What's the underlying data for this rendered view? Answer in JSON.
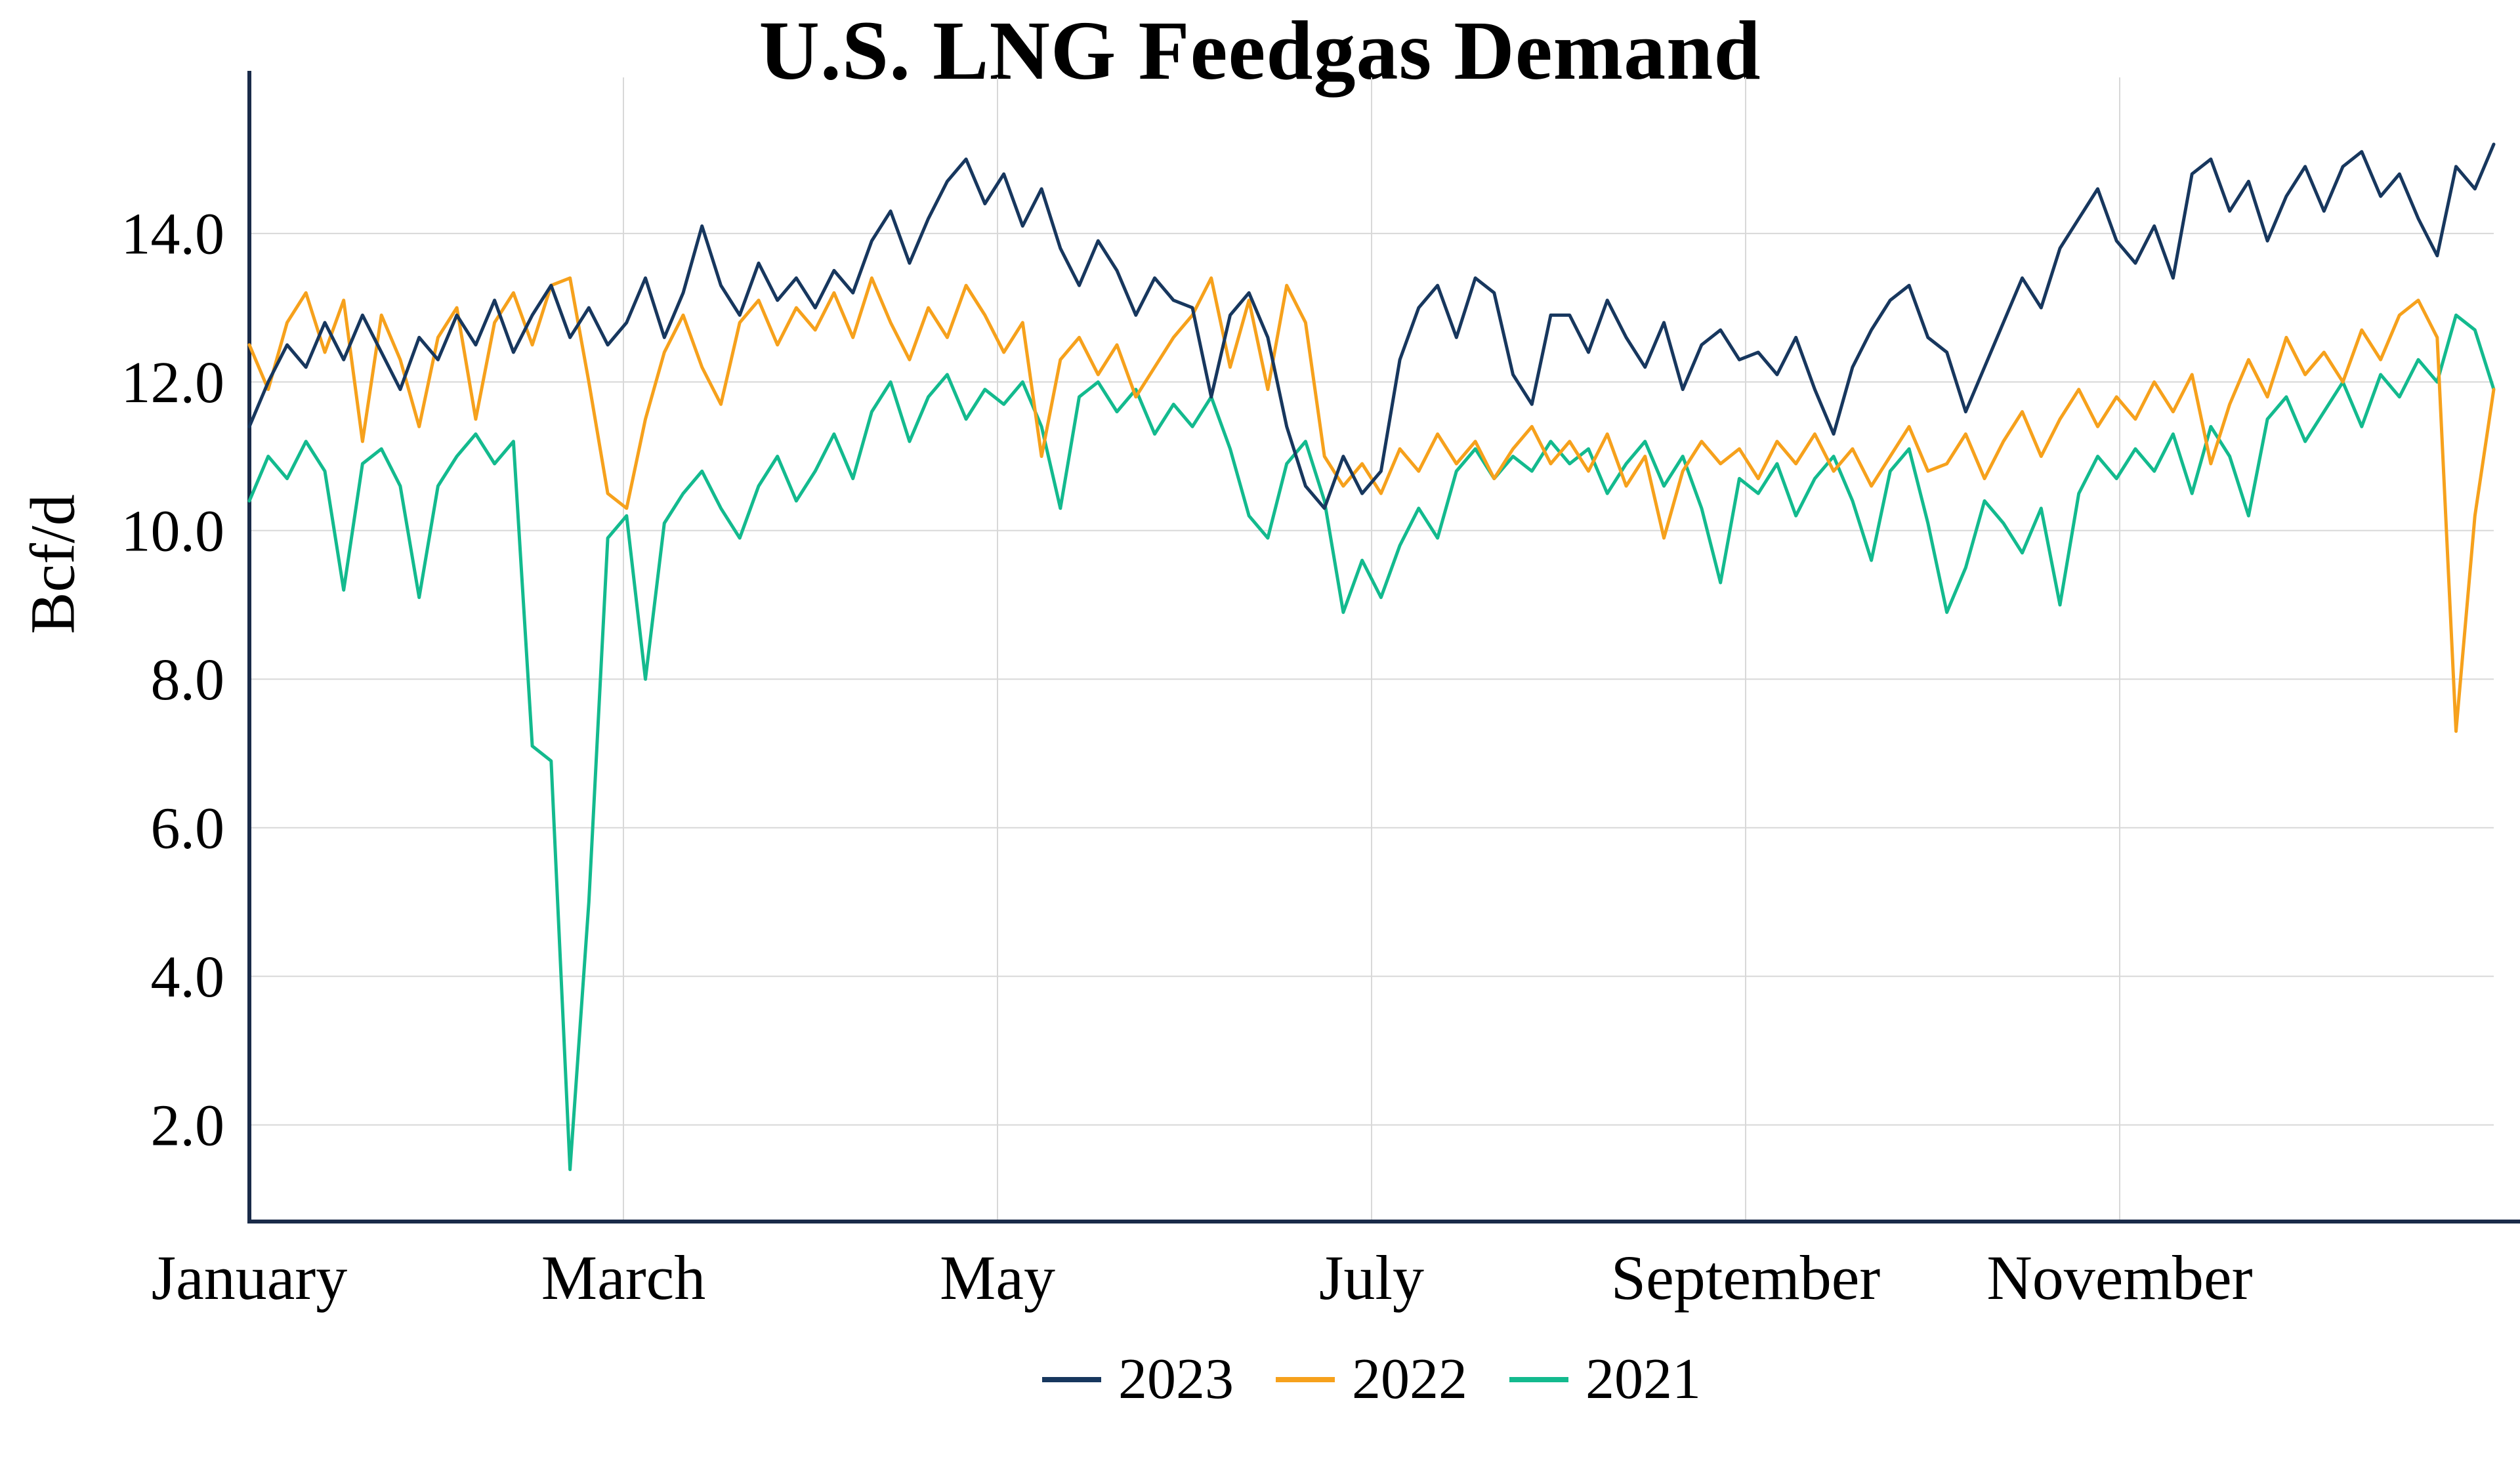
{
  "chart_data": {
    "type": "line",
    "title": "U.S. LNG Feedgas Demand",
    "ylabel": "Bcf/d",
    "xlabel": "",
    "grid": true,
    "legend_position": "bottom",
    "ylim": [
      0.7,
      16.1
    ],
    "y_ticks": [
      2,
      4,
      6,
      8,
      10,
      12,
      14
    ],
    "y_tick_labels": [
      "2.0",
      "4.0",
      "6.0",
      "8.0",
      "10.0",
      "12.0",
      "14.0"
    ],
    "x_tick_months": [
      0,
      2,
      4,
      6,
      8,
      10
    ],
    "x_tick_labels": [
      "January",
      "March",
      "May",
      "July",
      "September",
      "November"
    ],
    "points_per_month": 10,
    "colors": {
      "axis": "#1a2b49",
      "grid": "#d8d8d8",
      "text": "#000000"
    },
    "series": [
      {
        "name": "2023",
        "color": "#17375E",
        "values": [
          11.4,
          12.0,
          12.5,
          12.2,
          12.8,
          12.3,
          12.9,
          12.4,
          11.9,
          12.6,
          12.3,
          12.9,
          12.5,
          13.1,
          12.4,
          12.9,
          13.3,
          12.6,
          13.0,
          12.5,
          12.8,
          13.4,
          12.6,
          13.2,
          14.1,
          13.3,
          12.9,
          13.6,
          13.1,
          13.4,
          13.0,
          13.5,
          13.2,
          13.9,
          14.3,
          13.6,
          14.2,
          14.7,
          15.0,
          14.4,
          14.8,
          14.1,
          14.6,
          13.8,
          13.3,
          13.9,
          13.5,
          12.9,
          13.4,
          13.1,
          13.0,
          11.8,
          12.9,
          13.2,
          12.6,
          11.4,
          10.6,
          10.3,
          11.0,
          10.5,
          10.8,
          12.3,
          13.0,
          13.3,
          12.6,
          13.4,
          13.2,
          12.1,
          11.7,
          12.9,
          12.9,
          12.4,
          13.1,
          12.6,
          12.2,
          12.8,
          11.9,
          12.5,
          12.7,
          12.3,
          12.4,
          12.1,
          12.6,
          11.9,
          11.3,
          12.2,
          12.7,
          13.1,
          13.3,
          12.6,
          12.4,
          11.6,
          12.2,
          12.8,
          13.4,
          13.0,
          13.8,
          14.2,
          14.6,
          13.9,
          13.6,
          14.1,
          13.4,
          14.8,
          15.0,
          14.3,
          14.7,
          13.9,
          14.5,
          14.9,
          14.3,
          14.9,
          15.1,
          14.5,
          14.8,
          14.2,
          13.7,
          14.9,
          14.6,
          15.2
        ]
      },
      {
        "name": "2022",
        "color": "#F6A11C",
        "values": [
          12.5,
          11.9,
          12.8,
          13.2,
          12.4,
          13.1,
          11.2,
          12.9,
          12.3,
          11.4,
          12.6,
          13.0,
          11.5,
          12.8,
          13.2,
          12.5,
          13.3,
          13.4,
          12.0,
          10.5,
          10.3,
          11.5,
          12.4,
          12.9,
          12.2,
          11.7,
          12.8,
          13.1,
          12.5,
          13.0,
          12.7,
          13.2,
          12.6,
          13.4,
          12.8,
          12.3,
          13.0,
          12.6,
          13.3,
          12.9,
          12.4,
          12.8,
          11.0,
          12.3,
          12.6,
          12.1,
          12.5,
          11.8,
          12.2,
          12.6,
          12.9,
          13.4,
          12.2,
          13.1,
          11.9,
          13.3,
          12.8,
          11.0,
          10.6,
          10.9,
          10.5,
          11.1,
          10.8,
          11.3,
          10.9,
          11.2,
          10.7,
          11.1,
          11.4,
          10.9,
          11.2,
          10.8,
          11.3,
          10.6,
          11.0,
          9.9,
          10.8,
          11.2,
          10.9,
          11.1,
          10.7,
          11.2,
          10.9,
          11.3,
          10.8,
          11.1,
          10.6,
          11.0,
          11.4,
          10.8,
          10.9,
          11.3,
          10.7,
          11.2,
          11.6,
          11.0,
          11.5,
          11.9,
          11.4,
          11.8,
          11.5,
          12.0,
          11.6,
          12.1,
          10.9,
          11.7,
          12.3,
          11.8,
          12.6,
          12.1,
          12.4,
          12.0,
          12.7,
          12.3,
          12.9,
          13.1,
          12.6,
          7.3,
          10.2,
          11.9
        ]
      },
      {
        "name": "2021",
        "color": "#13BA8E",
        "values": [
          10.4,
          11.0,
          10.7,
          11.2,
          10.8,
          9.2,
          10.9,
          11.1,
          10.6,
          9.1,
          10.6,
          11.0,
          11.3,
          10.9,
          11.2,
          7.1,
          6.9,
          1.4,
          5.0,
          9.9,
          10.2,
          8.0,
          10.1,
          10.5,
          10.8,
          10.3,
          9.9,
          10.6,
          11.0,
          10.4,
          10.8,
          11.3,
          10.7,
          11.6,
          12.0,
          11.2,
          11.8,
          12.1,
          11.5,
          11.9,
          11.7,
          12.0,
          11.4,
          10.3,
          11.8,
          12.0,
          11.6,
          11.9,
          11.3,
          11.7,
          11.4,
          11.8,
          11.1,
          10.2,
          9.9,
          10.9,
          11.2,
          10.4,
          8.9,
          9.6,
          9.1,
          9.8,
          10.3,
          9.9,
          10.8,
          11.1,
          10.7,
          11.0,
          10.8,
          11.2,
          10.9,
          11.1,
          10.5,
          10.9,
          11.2,
          10.6,
          11.0,
          10.3,
          9.3,
          10.7,
          10.5,
          10.9,
          10.2,
          10.7,
          11.0,
          10.4,
          9.6,
          10.8,
          11.1,
          10.1,
          8.9,
          9.5,
          10.4,
          10.1,
          9.7,
          10.3,
          9.0,
          10.5,
          11.0,
          10.7,
          11.1,
          10.8,
          11.3,
          10.5,
          11.4,
          11.0,
          10.2,
          11.5,
          11.8,
          11.2,
          11.6,
          12.0,
          11.4,
          12.1,
          11.8,
          12.3,
          12.0,
          12.9,
          12.7,
          11.9
        ]
      }
    ]
  }
}
